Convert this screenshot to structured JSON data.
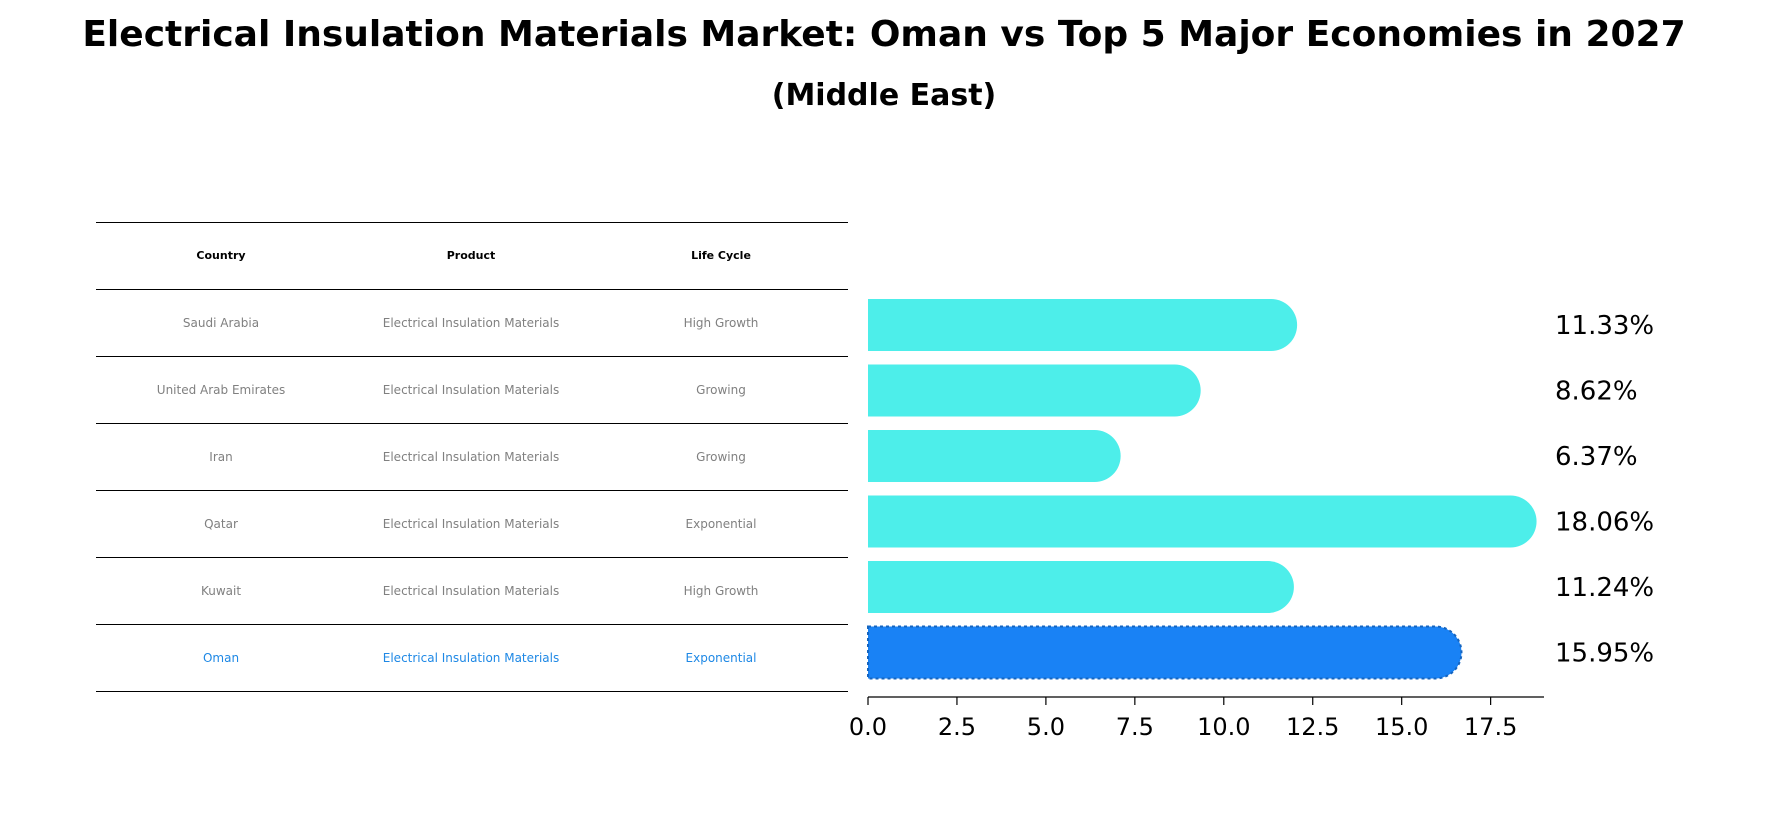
{
  "title": "Electrical Insulation Materials Market: Oman vs Top 5 Major Economies in 2027",
  "subtitle": "(Middle East)",
  "table": {
    "headers": [
      "Country",
      "Product",
      "Life Cycle"
    ],
    "rows": [
      {
        "country": "Saudi Arabia",
        "product": "Electrical Insulation Materials",
        "life_cycle": "High Growth",
        "highlight": false
      },
      {
        "country": "United Arab Emirates",
        "product": "Electrical Insulation Materials",
        "life_cycle": "Growing",
        "highlight": false
      },
      {
        "country": "Iran",
        "product": "Electrical Insulation Materials",
        "life_cycle": "Growing",
        "highlight": false
      },
      {
        "country": "Qatar",
        "product": "Electrical Insulation Materials",
        "life_cycle": "Exponential",
        "highlight": false
      },
      {
        "country": "Kuwait",
        "product": "Electrical Insulation Materials",
        "life_cycle": "High Growth",
        "highlight": false
      },
      {
        "country": "Oman",
        "product": "Electrical Insulation Materials",
        "life_cycle": "Exponential",
        "highlight": true
      }
    ]
  },
  "chart_data": {
    "type": "bar",
    "orientation": "horizontal",
    "categories": [
      "Saudi Arabia",
      "United Arab Emirates",
      "Iran",
      "Qatar",
      "Kuwait",
      "Oman"
    ],
    "values": [
      11.33,
      8.62,
      6.37,
      18.06,
      11.24,
      15.95
    ],
    "value_labels": [
      "11.33%",
      "8.62%",
      "6.37%",
      "18.06%",
      "11.24%",
      "15.95%"
    ],
    "xlim": [
      0,
      19
    ],
    "xticks": [
      0.0,
      2.5,
      5.0,
      7.5,
      10.0,
      12.5,
      15.0,
      17.5
    ],
    "xtick_labels": [
      "0.0",
      "2.5",
      "5.0",
      "7.5",
      "10.0",
      "12.5",
      "15.0",
      "17.5"
    ],
    "grid": false,
    "colors": {
      "default": "#4deeea",
      "highlight": "#1982f5"
    }
  }
}
